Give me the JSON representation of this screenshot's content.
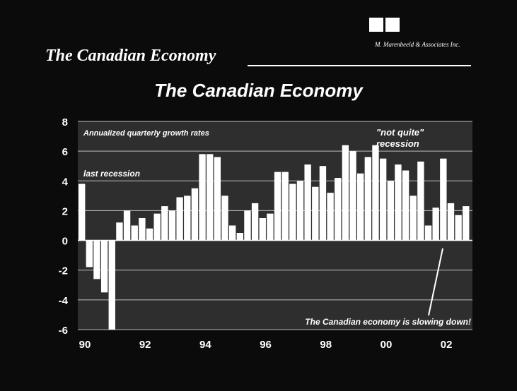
{
  "slide": {
    "header_title": "The Canadian Economy",
    "logo_text": "M. Marenbeeld & Associates Inc."
  },
  "chart_data": {
    "type": "bar",
    "title": "The Canadian Economy",
    "xlabel": "",
    "ylabel": "",
    "ylim": [
      -6,
      8
    ],
    "yticks": [
      -6,
      -4,
      -2,
      0,
      2,
      4,
      6,
      8
    ],
    "xlim": [
      1990,
      2003.1
    ],
    "xticks": [
      {
        "value": 1990,
        "label": "90"
      },
      {
        "value": 1992,
        "label": "92"
      },
      {
        "value": 1994,
        "label": "94"
      },
      {
        "value": 1996,
        "label": "96"
      },
      {
        "value": 1998,
        "label": "98"
      },
      {
        "value": 2000,
        "label": "00"
      },
      {
        "value": 2002,
        "label": "02"
      }
    ],
    "grid": true,
    "series": [
      {
        "x": [
          1990.0,
          1990.25,
          1990.5,
          1990.75,
          1991.0,
          1991.25,
          1991.5,
          1991.75,
          1992.0,
          1992.25,
          1992.5,
          1992.75,
          1993.0,
          1993.25,
          1993.5,
          1993.75,
          1994.0,
          1994.25,
          1994.5,
          1994.75,
          1995.0,
          1995.25,
          1995.5,
          1995.75,
          1996.0,
          1996.25,
          1996.5,
          1996.75,
          1997.0,
          1997.25,
          1997.5,
          1997.75,
          1998.0,
          1998.25,
          1998.5,
          1998.75,
          1999.0,
          1999.25,
          1999.5,
          1999.75,
          2000.0,
          2000.25,
          2000.5,
          2000.75,
          2001.0,
          2001.25,
          2001.5,
          2001.75,
          2002.0,
          2002.25,
          2002.5,
          2002.75
        ],
        "values": [
          3.8,
          -1.8,
          -2.6,
          -3.5,
          -6.0,
          1.2,
          2.0,
          1.0,
          1.5,
          0.8,
          1.8,
          2.3,
          2.0,
          2.9,
          3.0,
          3.5,
          5.8,
          5.8,
          5.6,
          3.0,
          1.0,
          0.5,
          2.0,
          2.5,
          1.5,
          1.8,
          4.6,
          4.6,
          3.8,
          4.0,
          5.1,
          3.6,
          5.0,
          3.2,
          4.2,
          6.4,
          6.0,
          4.5,
          5.6,
          6.4,
          5.5,
          4.0,
          5.1,
          4.7,
          3.0,
          5.3,
          1.0,
          2.2,
          5.5,
          2.5,
          1.7,
          2.3
        ]
      }
    ],
    "annotations": [
      {
        "text": "Annualized quarterly growth rates"
      },
      {
        "text": "last recession"
      },
      {
        "text": "\"not quite\""
      },
      {
        "text": "recession"
      },
      {
        "text": "The Canadian economy is slowing down!"
      }
    ]
  }
}
